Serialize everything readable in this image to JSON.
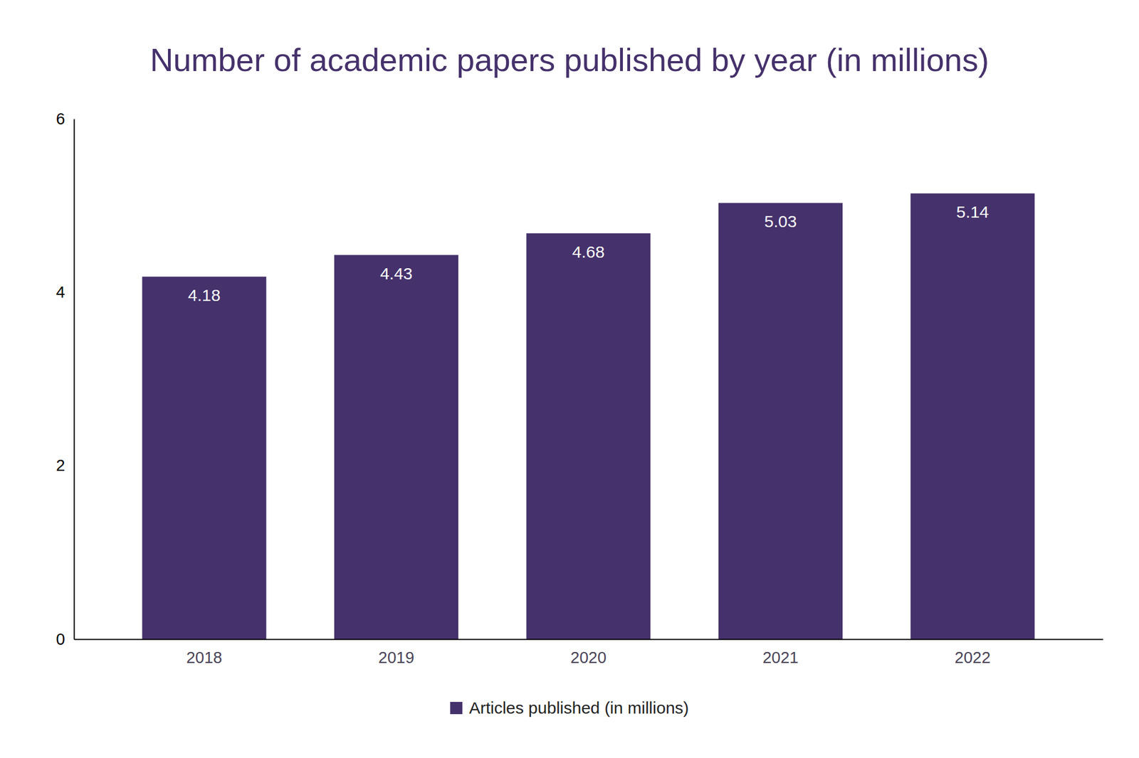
{
  "chart_data": {
    "type": "bar",
    "title": "Number of academic papers published by year (in millions)",
    "categories": [
      "2018",
      "2019",
      "2020",
      "2021",
      "2022"
    ],
    "series": [
      {
        "name": "Articles published (in millions)",
        "color": "#45316b",
        "values": [
          4.18,
          4.43,
          4.68,
          5.03,
          5.14
        ]
      }
    ],
    "ylim": [
      0,
      6
    ],
    "yticks": [
      0,
      2,
      4,
      6
    ],
    "data_labels": true,
    "legend": "bottom",
    "grid": false
  }
}
